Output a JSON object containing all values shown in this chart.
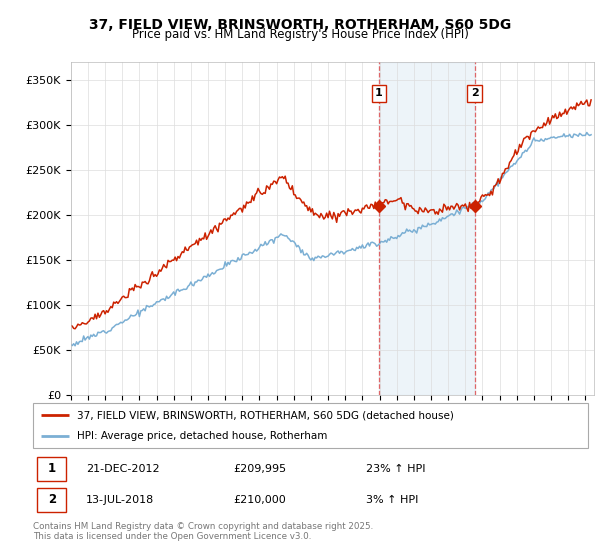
{
  "title": "37, FIELD VIEW, BRINSWORTH, ROTHERHAM, S60 5DG",
  "subtitle": "Price paid vs. HM Land Registry's House Price Index (HPI)",
  "legend_label1": "37, FIELD VIEW, BRINSWORTH, ROTHERHAM, S60 5DG (detached house)",
  "legend_label2": "HPI: Average price, detached house, Rotherham",
  "sale1_date": "21-DEC-2012",
  "sale1_price": "£209,995",
  "sale1_hpi": "23% ↑ HPI",
  "sale2_date": "13-JUL-2018",
  "sale2_price": "£210,000",
  "sale2_hpi": "3% ↑ HPI",
  "footer": "Contains HM Land Registry data © Crown copyright and database right 2025.\nThis data is licensed under the Open Government Licence v3.0.",
  "yticks": [
    0,
    50000,
    100000,
    150000,
    200000,
    250000,
    300000,
    350000
  ],
  "ytick_labels": [
    "£0",
    "£50K",
    "£100K",
    "£150K",
    "£200K",
    "£250K",
    "£300K",
    "£350K"
  ],
  "hpi_color": "#7bafd4",
  "price_color": "#cc2200",
  "grid_color": "#dddddd",
  "background_color": "#ffffff",
  "sale1_x": 2012.97,
  "sale2_x": 2018.54,
  "sale1_y": 209995,
  "sale2_y": 210000,
  "xmin": 1995,
  "xmax": 2025.5,
  "ymin": 0,
  "ymax": 370000,
  "shaded_xmin": 2012.97,
  "shaded_xmax": 2018.54
}
